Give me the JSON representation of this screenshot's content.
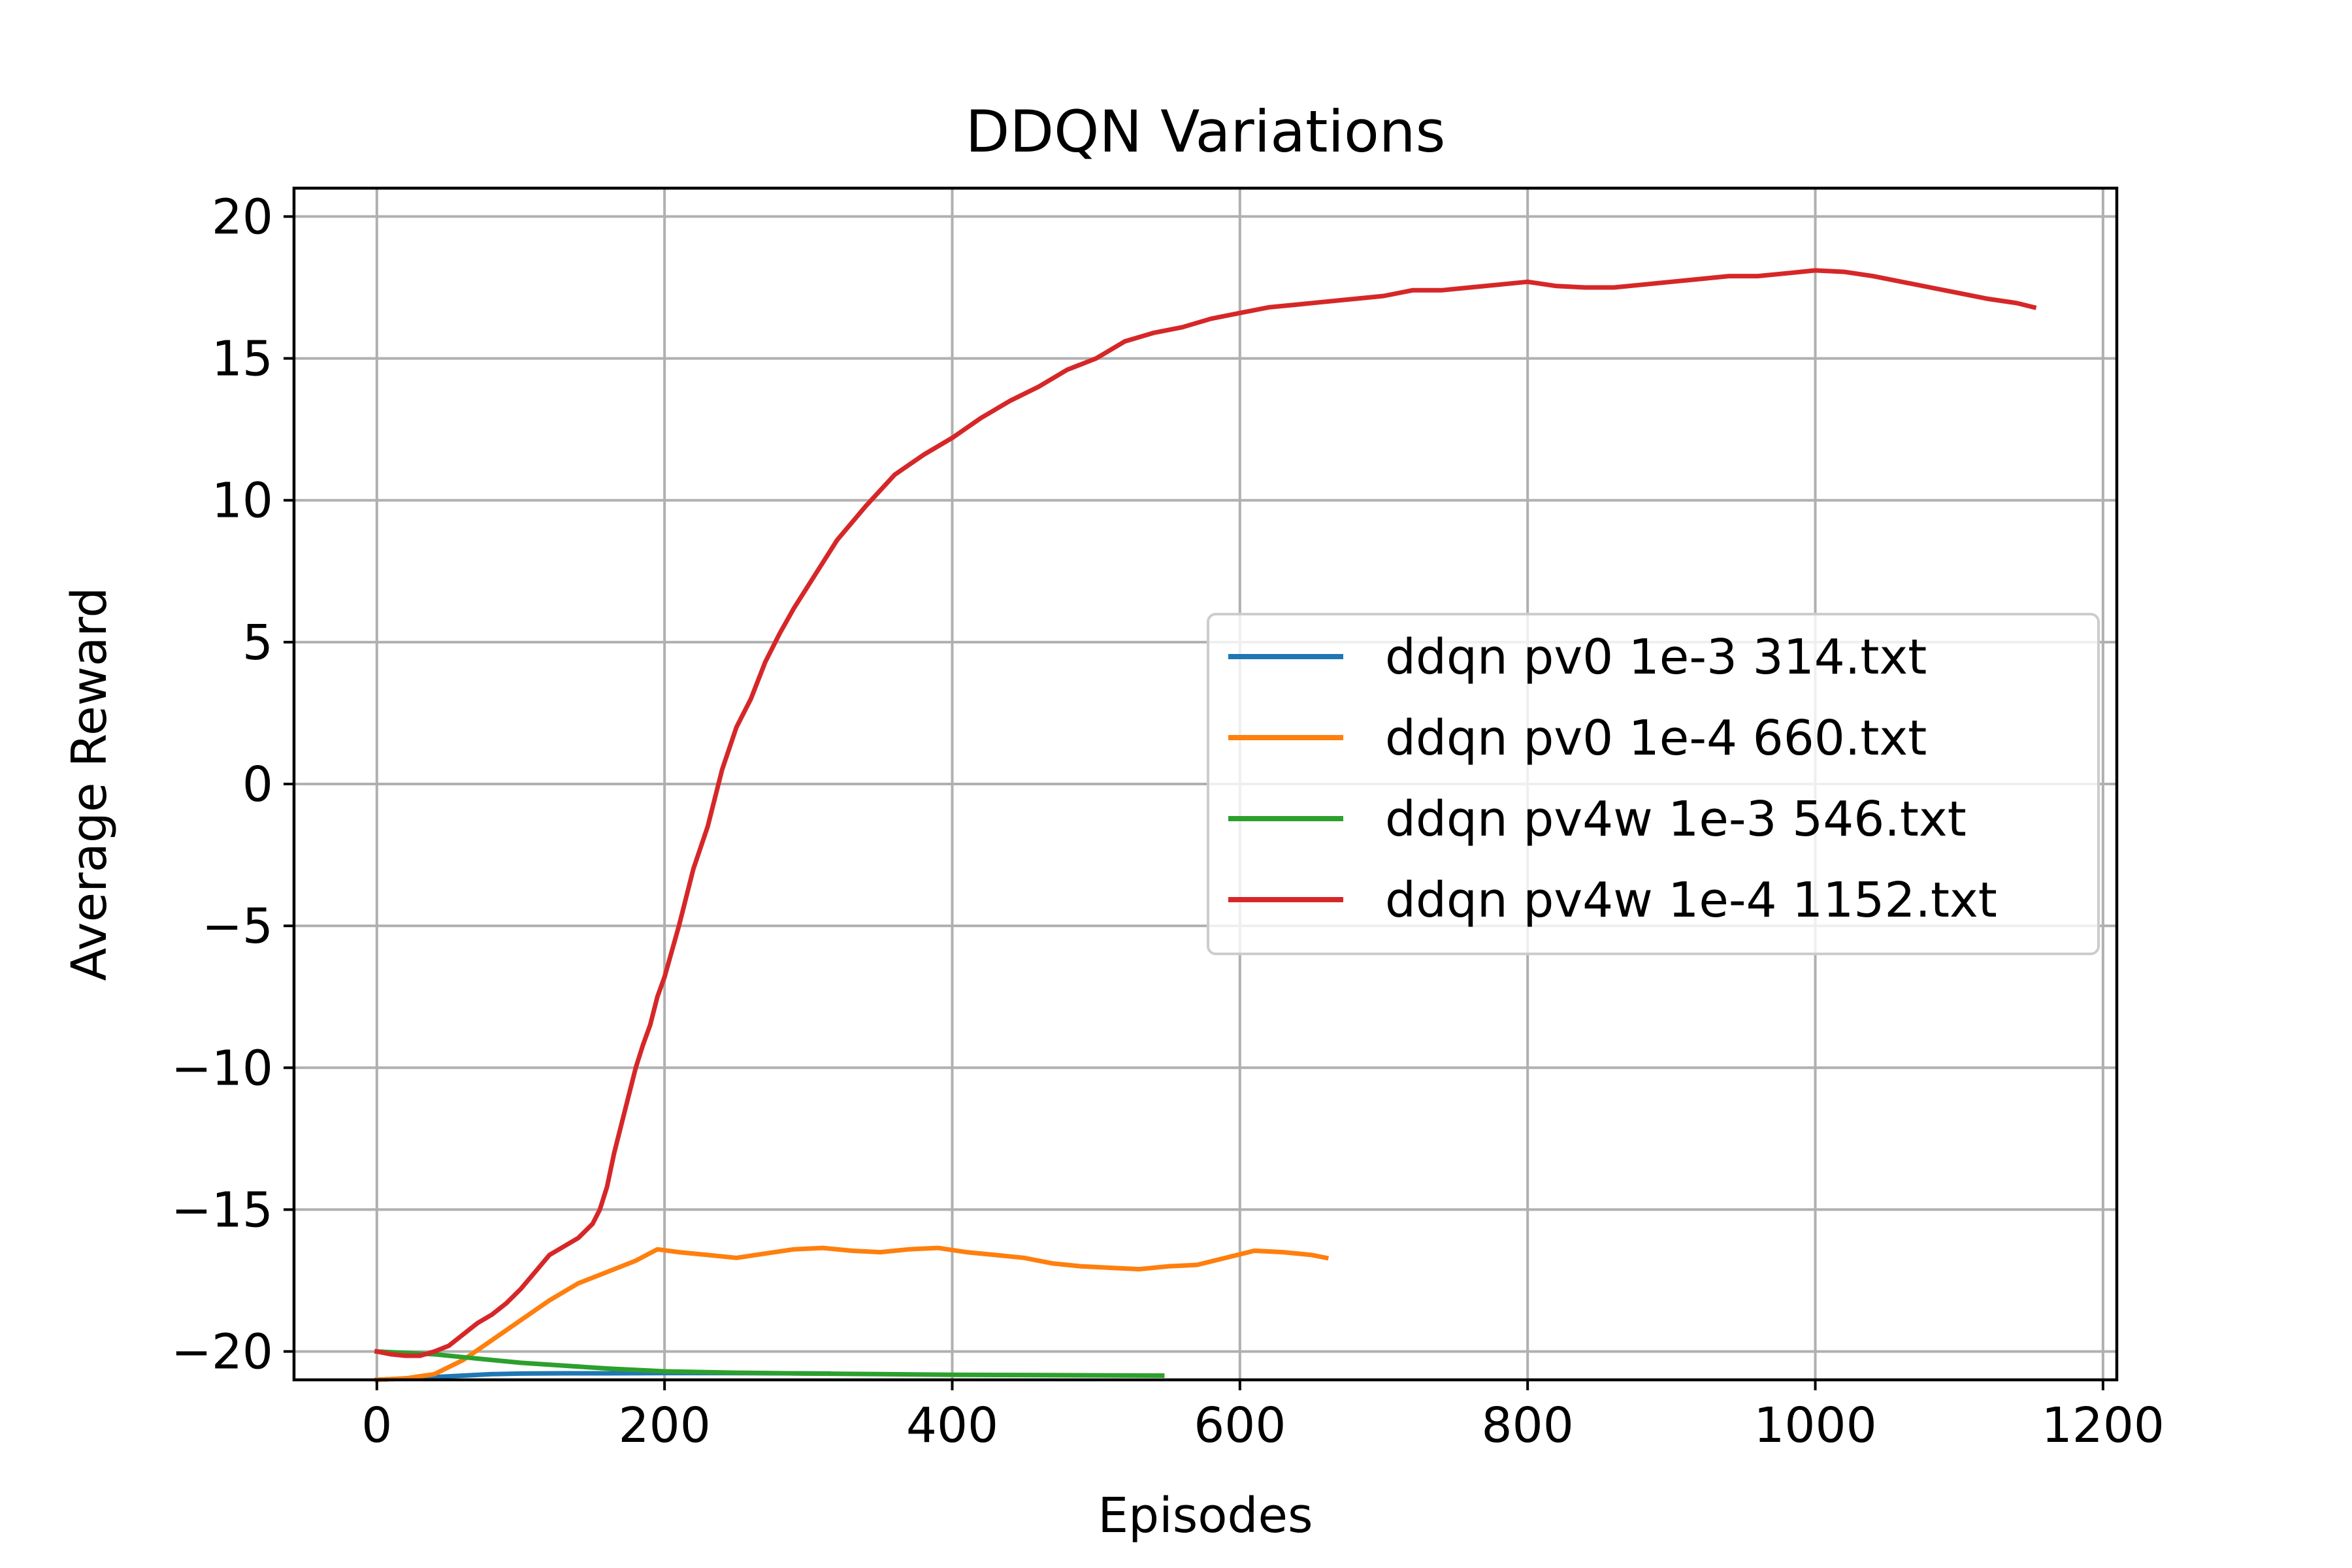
{
  "chart_data": {
    "type": "line",
    "title": "DDQN Variations",
    "xlabel": "Episodes",
    "ylabel": "Average Reward",
    "xlim": [
      -57.6,
      1209.6
    ],
    "ylim": [
      -21,
      21
    ],
    "xticks": [
      0,
      200,
      400,
      600,
      800,
      1000,
      1200
    ],
    "xtick_labels": [
      "0",
      "200",
      "400",
      "600",
      "800",
      "1000",
      "1200"
    ],
    "yticks": [
      -20,
      -15,
      -10,
      -5,
      0,
      5,
      10,
      15,
      20
    ],
    "ytick_labels": [
      "−20",
      "−15",
      "−10",
      "−5",
      "0",
      "5",
      "10",
      "15",
      "20"
    ],
    "grid": true,
    "legend_position": "center-right",
    "series": [
      {
        "name": "ddqn pv0 1e-3 314.txt",
        "color": "#1f77b4",
        "x": [
          0,
          20,
          40,
          60,
          80,
          100,
          130,
          160,
          200,
          240,
          280,
          314
        ],
        "y": [
          -21.0,
          -20.95,
          -20.9,
          -20.85,
          -20.8,
          -20.78,
          -20.77,
          -20.77,
          -20.76,
          -20.76,
          -20.77,
          -20.78
        ]
      },
      {
        "name": "ddqn pv0 1e-4 660.txt",
        "color": "#ff7f0e",
        "x": [
          0,
          20,
          40,
          60,
          80,
          100,
          120,
          140,
          160,
          180,
          195,
          210,
          230,
          250,
          270,
          290,
          310,
          330,
          350,
          370,
          390,
          410,
          430,
          450,
          470,
          490,
          510,
          530,
          550,
          570,
          590,
          610,
          630,
          650,
          660
        ],
        "y": [
          -21.0,
          -20.95,
          -20.8,
          -20.3,
          -19.6,
          -18.9,
          -18.2,
          -17.6,
          -17.2,
          -16.8,
          -16.4,
          -16.5,
          -16.6,
          -16.7,
          -16.55,
          -16.4,
          -16.35,
          -16.45,
          -16.5,
          -16.4,
          -16.35,
          -16.5,
          -16.6,
          -16.7,
          -16.9,
          -17.0,
          -17.05,
          -17.1,
          -17.0,
          -16.95,
          -16.7,
          -16.45,
          -16.5,
          -16.6,
          -16.7
        ]
      },
      {
        "name": "ddqn pv4w 1e-3 546.txt",
        "color": "#2ca02c",
        "x": [
          0,
          20,
          40,
          60,
          80,
          100,
          130,
          160,
          200,
          250,
          300,
          350,
          400,
          450,
          500,
          546
        ],
        "y": [
          -20.0,
          -20.05,
          -20.1,
          -20.2,
          -20.3,
          -20.4,
          -20.5,
          -20.6,
          -20.7,
          -20.75,
          -20.78,
          -20.8,
          -20.82,
          -20.83,
          -20.84,
          -20.85
        ]
      },
      {
        "name": "ddqn pv4w 1e-4 1152.txt",
        "color": "#d62728",
        "x": [
          0,
          10,
          20,
          30,
          40,
          50,
          60,
          70,
          80,
          90,
          100,
          110,
          120,
          130,
          140,
          150,
          155,
          160,
          165,
          170,
          175,
          180,
          185,
          190,
          195,
          200,
          210,
          220,
          230,
          240,
          250,
          260,
          270,
          280,
          290,
          300,
          320,
          340,
          360,
          380,
          400,
          420,
          440,
          460,
          480,
          500,
          520,
          540,
          560,
          580,
          600,
          620,
          640,
          660,
          680,
          700,
          720,
          740,
          760,
          780,
          800,
          820,
          840,
          860,
          880,
          900,
          920,
          940,
          960,
          980,
          1000,
          1020,
          1040,
          1060,
          1080,
          1100,
          1120,
          1140,
          1152
        ],
        "y": [
          -20.0,
          -20.1,
          -20.15,
          -20.15,
          -20.0,
          -19.8,
          -19.4,
          -19.0,
          -18.7,
          -18.3,
          -17.8,
          -17.2,
          -16.6,
          -16.3,
          -16.0,
          -15.5,
          -15.0,
          -14.2,
          -13.0,
          -12.0,
          -11.0,
          -10.0,
          -9.2,
          -8.5,
          -7.5,
          -6.8,
          -5.0,
          -3.0,
          -1.5,
          0.5,
          2.0,
          3.0,
          4.3,
          5.3,
          6.2,
          7.0,
          8.6,
          9.8,
          10.9,
          11.6,
          12.2,
          12.9,
          13.5,
          14.0,
          14.6,
          15.0,
          15.6,
          15.9,
          16.1,
          16.4,
          16.6,
          16.8,
          16.9,
          17.0,
          17.1,
          17.2,
          17.4,
          17.4,
          17.5,
          17.6,
          17.7,
          17.55,
          17.5,
          17.5,
          17.6,
          17.7,
          17.8,
          17.9,
          17.9,
          18.0,
          18.1,
          18.05,
          17.9,
          17.7,
          17.5,
          17.3,
          17.1,
          16.95,
          16.8
        ]
      }
    ]
  }
}
